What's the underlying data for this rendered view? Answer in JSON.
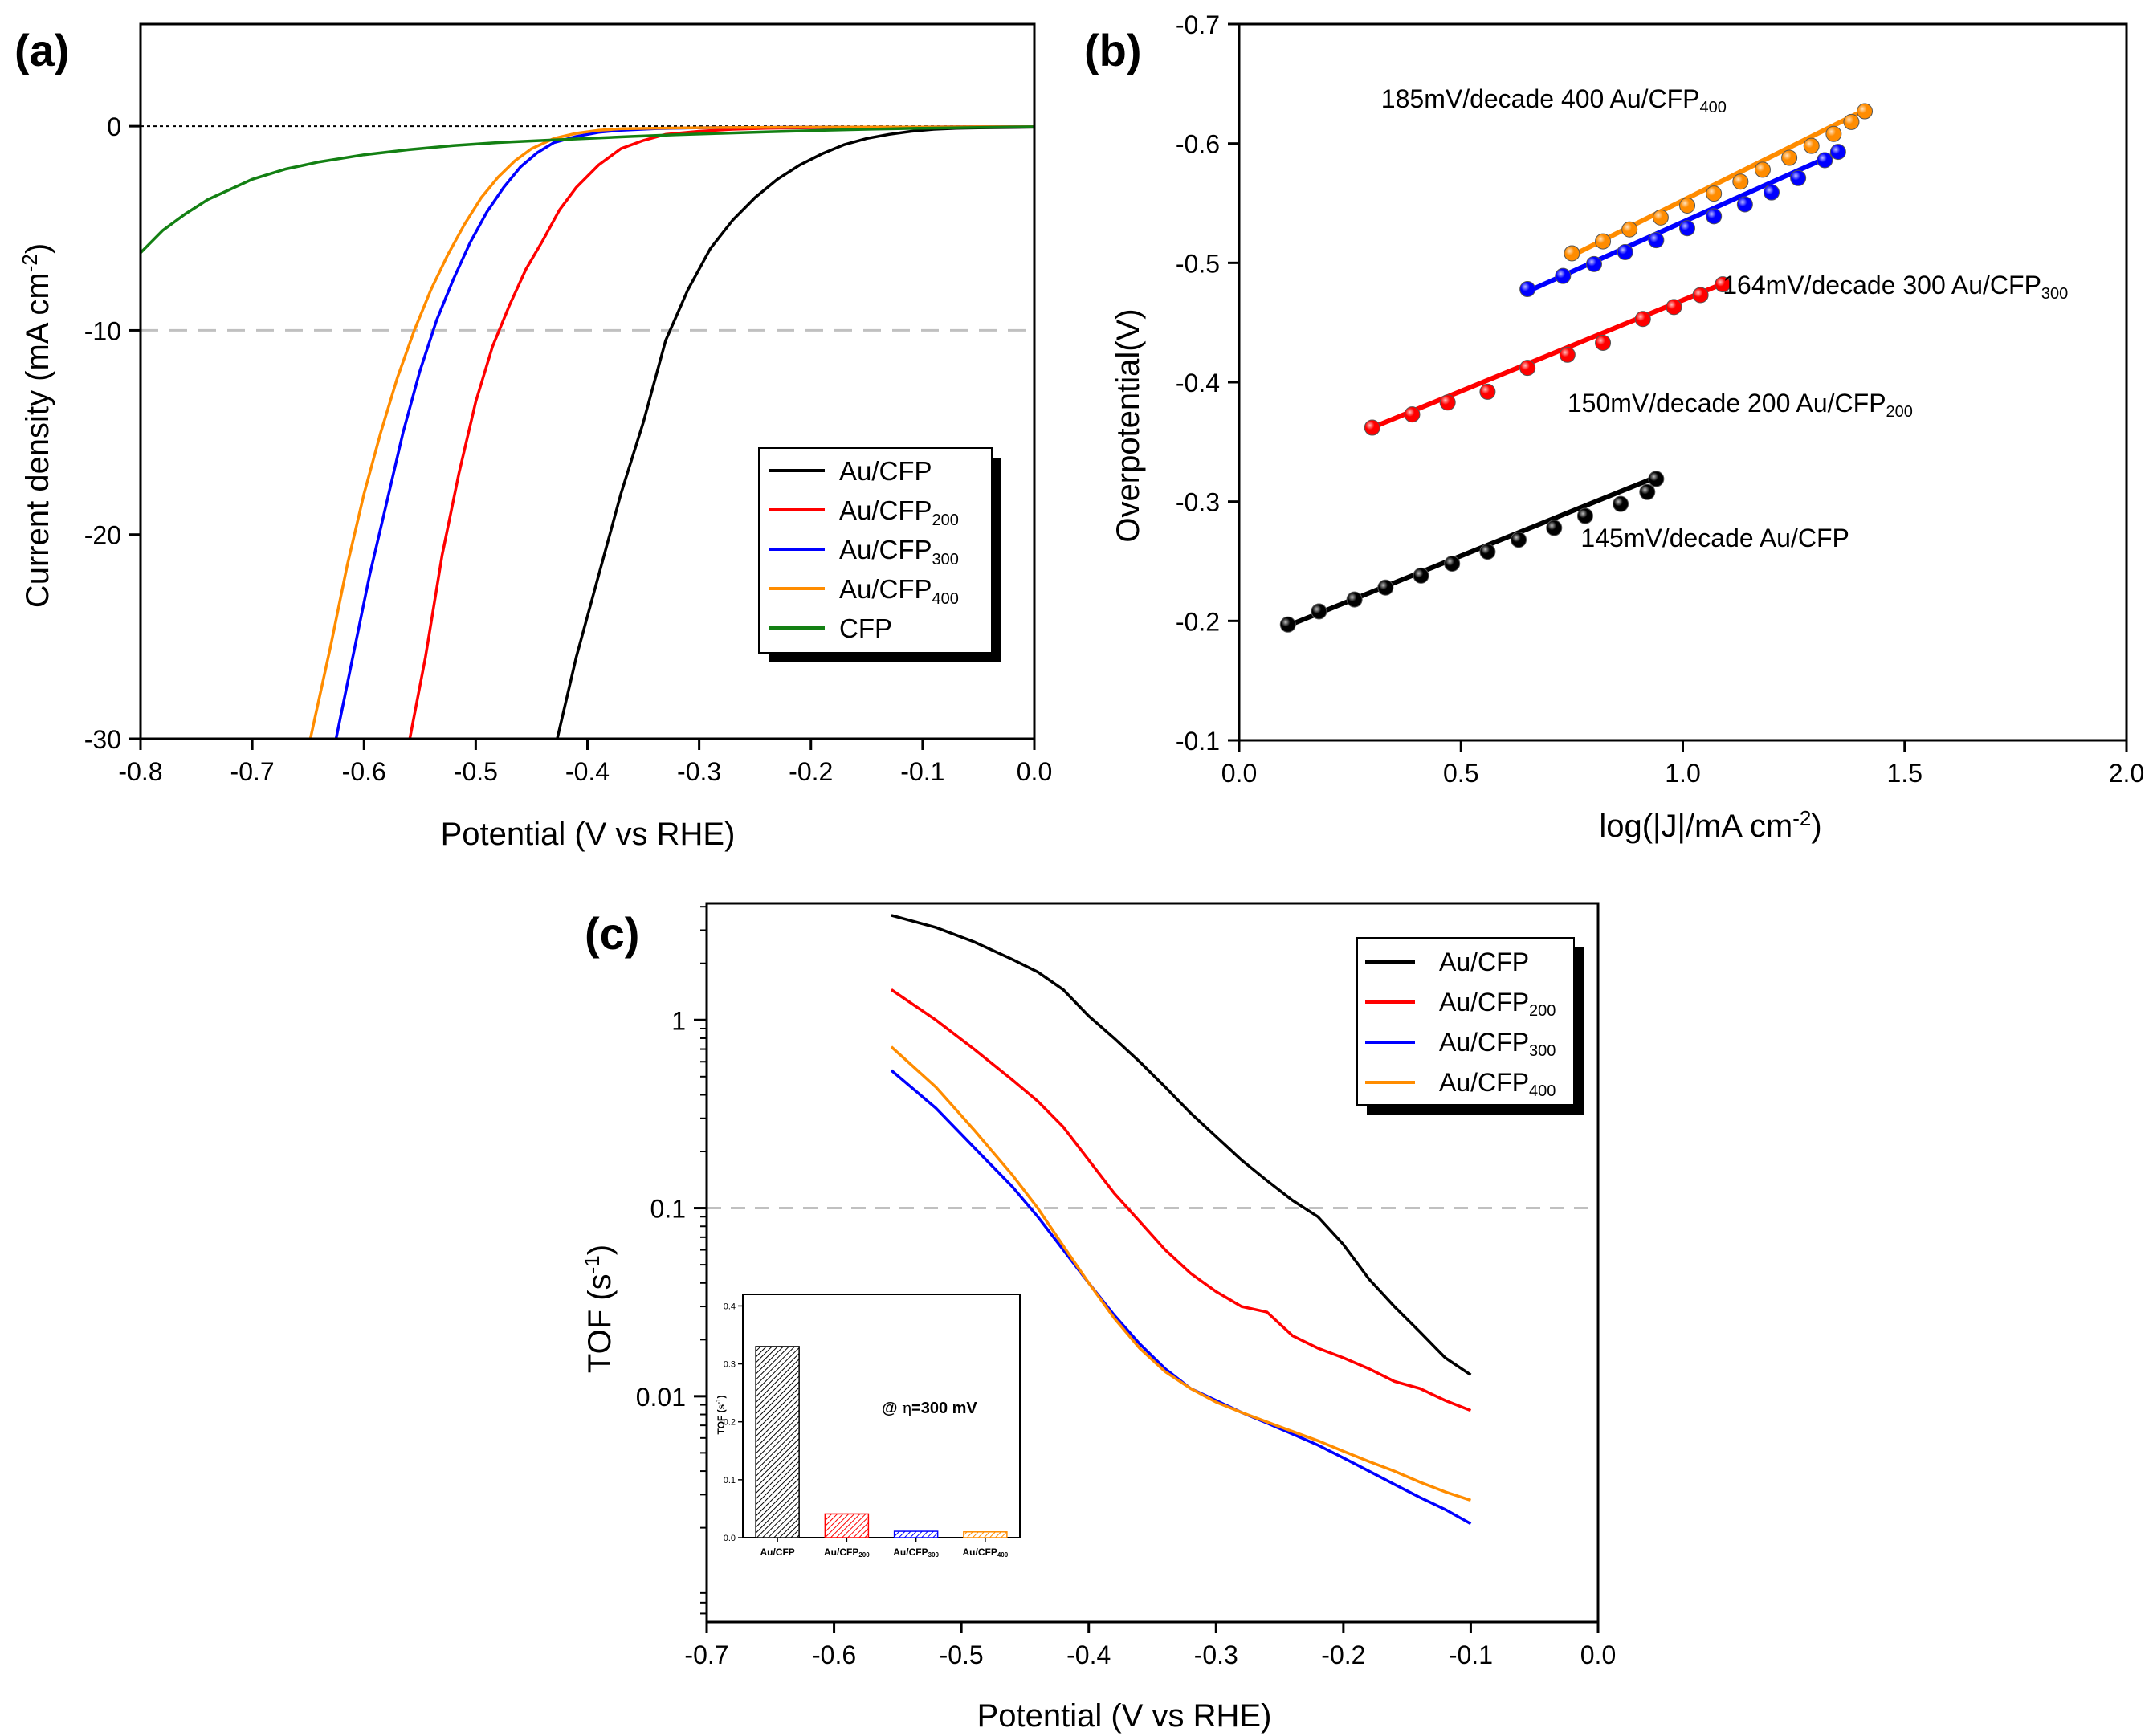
{
  "colors": {
    "Au/CFP": "#000000",
    "Au/CFP200": "#ff0000",
    "Au/CFP300": "#0000ff",
    "Au/CFP400": "#ff8c00",
    "CFP": "#138013",
    "ref_line": "#c0c0c0"
  },
  "chart_data": [
    {
      "id": "a",
      "type": "line",
      "panel_label": "(a)",
      "xlabel": "Potential (V vs RHE)",
      "ylabel": {
        "main": "Current density (mA cm",
        "sup": "-2",
        "end": ")"
      },
      "xlim": [
        -0.8,
        0.0
      ],
      "ylim": [
        -30,
        5
      ],
      "xticks": [
        -0.8,
        -0.7,
        -0.6,
        -0.5,
        -0.4,
        -0.3,
        -0.2,
        -0.1,
        0.0
      ],
      "xtick_labels": [
        "-0.8",
        "-0.7",
        "-0.6",
        "-0.5",
        "-0.4",
        "-0.3",
        "-0.2",
        "-0.1",
        "0.0"
      ],
      "yticks": [
        -30,
        -20,
        -10,
        0
      ],
      "ytick_labels": [
        "-30",
        "-20",
        "-10",
        "0"
      ],
      "reference_lines": [
        {
          "y": 0,
          "style": "dotted"
        },
        {
          "y": -10,
          "style": "dashed"
        }
      ],
      "legend": {
        "placement": "lower-right",
        "entries": [
          {
            "key": "Au/CFP",
            "base": "Au/CFP",
            "sub": ""
          },
          {
            "key": "Au/CFP200",
            "base": "Au/CFP",
            "sub": "200"
          },
          {
            "key": "Au/CFP300",
            "base": "Au/CFP",
            "sub": "300"
          },
          {
            "key": "Au/CFP400",
            "base": "Au/CFP",
            "sub": "400"
          },
          {
            "key": "CFP",
            "base": "CFP",
            "sub": ""
          }
        ]
      },
      "series": [
        {
          "name": "Au/CFP",
          "x": [
            -0.427,
            -0.41,
            -0.39,
            -0.37,
            -0.35,
            -0.33,
            -0.31,
            -0.29,
            -0.27,
            -0.25,
            -0.23,
            -0.21,
            -0.19,
            -0.17,
            -0.15,
            -0.13,
            -0.11,
            -0.09,
            -0.07,
            -0.05,
            -0.02,
            0.0
          ],
          "y": [
            -30,
            -26,
            -22,
            -18,
            -14.5,
            -10.5,
            -8,
            -6,
            -4.6,
            -3.5,
            -2.6,
            -1.9,
            -1.35,
            -0.9,
            -0.6,
            -0.4,
            -0.25,
            -0.15,
            -0.1,
            -0.08,
            -0.06,
            -0.05
          ]
        },
        {
          "name": "Au/CFP200",
          "x": [
            -0.559,
            -0.545,
            -0.53,
            -0.515,
            -0.5,
            -0.485,
            -0.47,
            -0.455,
            -0.44,
            -0.425,
            -0.41,
            -0.39,
            -0.37,
            -0.35,
            -0.33,
            -0.3,
            -0.27,
            -0.24,
            -0.21,
            -0.18,
            -0.15,
            -0.1,
            -0.05,
            0.0
          ],
          "y": [
            -30,
            -26,
            -21,
            -17,
            -13.5,
            -10.8,
            -8.8,
            -7,
            -5.6,
            -4.1,
            -3,
            -1.9,
            -1.1,
            -0.7,
            -0.4,
            -0.25,
            -0.15,
            -0.1,
            -0.08,
            -0.06,
            -0.05,
            -0.04,
            -0.03,
            -0.03
          ]
        },
        {
          "name": "Au/CFP300",
          "x": [
            -0.625,
            -0.61,
            -0.595,
            -0.58,
            -0.565,
            -0.55,
            -0.535,
            -0.52,
            -0.505,
            -0.49,
            -0.475,
            -0.46,
            -0.445,
            -0.43,
            -0.41,
            -0.39,
            -0.37,
            -0.34,
            -0.31,
            -0.28,
            -0.25,
            -0.2,
            -0.15,
            -0.1,
            -0.05,
            0.0
          ],
          "y": [
            -30,
            -26,
            -22,
            -18.5,
            -15,
            -12,
            -9.5,
            -7.5,
            -5.7,
            -4.2,
            -3,
            -2,
            -1.3,
            -0.8,
            -0.5,
            -0.3,
            -0.2,
            -0.12,
            -0.09,
            -0.07,
            -0.06,
            -0.05,
            -0.05,
            -0.04,
            -0.03,
            -0.03
          ]
        },
        {
          "name": "Au/CFP400",
          "x": [
            -0.648,
            -0.63,
            -0.615,
            -0.6,
            -0.585,
            -0.57,
            -0.555,
            -0.54,
            -0.525,
            -0.51,
            -0.495,
            -0.48,
            -0.465,
            -0.45,
            -0.43,
            -0.41,
            -0.39,
            -0.37,
            -0.34,
            -0.31,
            -0.28,
            -0.25,
            -0.2,
            -0.15,
            -0.1,
            -0.05,
            0.0
          ],
          "y": [
            -30,
            -25.5,
            -21.5,
            -18,
            -15,
            -12.3,
            -10,
            -8,
            -6.3,
            -4.8,
            -3.5,
            -2.5,
            -1.7,
            -1.1,
            -0.6,
            -0.35,
            -0.2,
            -0.13,
            -0.1,
            -0.08,
            -0.07,
            -0.06,
            -0.05,
            -0.04,
            -0.04,
            -0.03,
            -0.03
          ]
        },
        {
          "name": "CFP",
          "x": [
            -0.8,
            -0.78,
            -0.76,
            -0.74,
            -0.72,
            -0.7,
            -0.67,
            -0.64,
            -0.6,
            -0.56,
            -0.52,
            -0.48,
            -0.44,
            -0.4,
            -0.36,
            -0.32,
            -0.28,
            -0.24,
            -0.2,
            -0.15,
            -0.1,
            -0.05,
            0.0
          ],
          "y": [
            -6.2,
            -5.1,
            -4.3,
            -3.6,
            -3.1,
            -2.6,
            -2.1,
            -1.75,
            -1.4,
            -1.15,
            -0.95,
            -0.8,
            -0.7,
            -0.6,
            -0.5,
            -0.42,
            -0.35,
            -0.28,
            -0.22,
            -0.15,
            -0.1,
            -0.06,
            -0.03
          ]
        }
      ]
    },
    {
      "id": "b",
      "type": "scatter",
      "panel_label": "(b)",
      "xlabel": {
        "main": "log(|J|/mA cm",
        "sup": "-2",
        "end": ")"
      },
      "ylabel": "Overpotential(V)",
      "xlim": [
        0.0,
        2.0
      ],
      "ylim": [
        -0.1,
        -0.7
      ],
      "xticks": [
        0.0,
        0.5,
        1.0,
        1.5,
        2.0
      ],
      "xtick_labels": [
        "0.0",
        "0.5",
        "1.0",
        "1.5",
        "2.0"
      ],
      "yticks": [
        -0.1,
        -0.2,
        -0.3,
        -0.4,
        -0.5,
        -0.6,
        -0.7
      ],
      "ytick_labels": [
        "-0.1",
        "-0.2",
        "-0.3",
        "-0.4",
        "-0.5",
        "-0.6",
        "-0.7"
      ],
      "annotations": [
        {
          "series": "Au/CFP",
          "text": "145mV/decade Au/CFP",
          "sub": "",
          "x": 0.77,
          "y": -0.262
        },
        {
          "series": "Au/CFP200",
          "text": "150mV/decade 200 Au/CFP",
          "sub": "200",
          "x": 0.74,
          "y": -0.375
        },
        {
          "series": "Au/CFP300",
          "text": "164mV/decade 300 Au/CFP",
          "sub": "300",
          "x": 1.09,
          "y": -0.474
        },
        {
          "series": "Au/CFP400",
          "text": "185mV/decade 400 Au/CFP",
          "sub": "400",
          "x": 0.32,
          "y": -0.63
        }
      ],
      "series": [
        {
          "name": "Au/CFP",
          "fit": {
            "x": [
              0.11,
              0.95
            ],
            "y": [
              -0.196,
              -0.322
            ]
          },
          "x": [
            0.11,
            0.18,
            0.26,
            0.33,
            0.41,
            0.48,
            0.56,
            0.63,
            0.71,
            0.78,
            0.86,
            0.92,
            0.94
          ],
          "y": [
            -0.197,
            -0.208,
            -0.218,
            -0.228,
            -0.238,
            -0.248,
            -0.258,
            -0.268,
            -0.278,
            -0.288,
            -0.298,
            -0.308,
            -0.319
          ]
        },
        {
          "name": "Au/CFP200",
          "fit": {
            "x": [
              0.3,
              1.1
            ],
            "y": [
              -0.362,
              -0.484
            ]
          },
          "x": [
            0.3,
            0.39,
            0.47,
            0.56,
            0.65,
            0.74,
            0.82,
            0.91,
            0.98,
            1.04,
            1.09
          ],
          "y": [
            -0.362,
            -0.373,
            -0.383,
            -0.392,
            -0.412,
            -0.423,
            -0.433,
            -0.453,
            -0.463,
            -0.473,
            -0.482
          ]
        },
        {
          "name": "Au/CFP300",
          "fit": {
            "x": [
              0.65,
              1.36
            ],
            "y": [
              -0.476,
              -0.594
            ]
          },
          "x": [
            0.65,
            0.73,
            0.8,
            0.87,
            0.94,
            1.01,
            1.07,
            1.14,
            1.2,
            1.26,
            1.32,
            1.35
          ],
          "y": [
            -0.478,
            -0.489,
            -0.499,
            -0.509,
            -0.519,
            -0.529,
            -0.539,
            -0.549,
            -0.559,
            -0.571,
            -0.586,
            -0.593
          ]
        },
        {
          "name": "Au/CFP400",
          "fit": {
            "x": [
              0.75,
              1.41
            ],
            "y": [
              -0.506,
              -0.628
            ]
          },
          "x": [
            0.75,
            0.82,
            0.88,
            0.95,
            1.01,
            1.07,
            1.13,
            1.18,
            1.24,
            1.29,
            1.34,
            1.38,
            1.41
          ],
          "y": [
            -0.508,
            -0.518,
            -0.528,
            -0.538,
            -0.548,
            -0.558,
            -0.568,
            -0.578,
            -0.588,
            -0.598,
            -0.608,
            -0.618,
            -0.627
          ]
        }
      ]
    },
    {
      "id": "c",
      "type": "line",
      "panel_label": "(c)",
      "xlabel": "Potential (V vs RHE)",
      "ylabel": {
        "main": "TOF (s",
        "sup": "-1",
        "end": ")"
      },
      "xlim": [
        -0.7,
        0.0
      ],
      "ylim_log10": [
        -3.2,
        0.62
      ],
      "yscale": "log",
      "xticks": [
        -0.7,
        -0.6,
        -0.5,
        -0.4,
        -0.3,
        -0.2,
        -0.1,
        0.0
      ],
      "xtick_labels": [
        "-0.7",
        "-0.6",
        "-0.5",
        "-0.4",
        "-0.3",
        "-0.2",
        "-0.1",
        "0.0"
      ],
      "yticks_log10": [
        -2,
        -1,
        0
      ],
      "ytick_labels": [
        "0.01",
        "0.1",
        "1"
      ],
      "reference_lines": [
        {
          "y": 0.1,
          "style": "dashed"
        }
      ],
      "legend": {
        "placement": "top-right",
        "entries": [
          {
            "key": "Au/CFP",
            "base": "Au/CFP",
            "sub": ""
          },
          {
            "key": "Au/CFP200",
            "base": "Au/CFP",
            "sub": "200"
          },
          {
            "key": "Au/CFP300",
            "base": "Au/CFP",
            "sub": "300"
          },
          {
            "key": "Au/CFP400",
            "base": "Au/CFP",
            "sub": "400"
          }
        ]
      },
      "series": [
        {
          "name": "Au/CFP",
          "x": [
            -0.555,
            -0.52,
            -0.49,
            -0.46,
            -0.44,
            -0.42,
            -0.4,
            -0.38,
            -0.36,
            -0.34,
            -0.32,
            -0.3,
            -0.28,
            -0.26,
            -0.24,
            -0.22,
            -0.2,
            -0.18,
            -0.16,
            -0.14,
            -0.12,
            -0.1
          ],
          "y": [
            3.6,
            3.1,
            2.6,
            2.1,
            1.8,
            1.45,
            1.05,
            0.8,
            0.6,
            0.44,
            0.32,
            0.24,
            0.18,
            0.14,
            0.11,
            0.09,
            0.064,
            0.042,
            0.03,
            0.022,
            0.016,
            0.013
          ]
        },
        {
          "name": "Au/CFP200",
          "x": [
            -0.555,
            -0.52,
            -0.49,
            -0.46,
            -0.44,
            -0.42,
            -0.4,
            -0.38,
            -0.36,
            -0.34,
            -0.32,
            -0.3,
            -0.28,
            -0.26,
            -0.24,
            -0.22,
            -0.2,
            -0.18,
            -0.16,
            -0.14,
            -0.12,
            -0.1
          ],
          "y": [
            1.45,
            1.0,
            0.7,
            0.48,
            0.37,
            0.27,
            0.18,
            0.12,
            0.085,
            0.06,
            0.045,
            0.036,
            0.03,
            0.028,
            0.021,
            0.018,
            0.016,
            0.014,
            0.012,
            0.011,
            0.0095,
            0.0084
          ]
        },
        {
          "name": "Au/CFP300",
          "x": [
            -0.555,
            -0.52,
            -0.49,
            -0.46,
            -0.44,
            -0.42,
            -0.4,
            -0.38,
            -0.36,
            -0.34,
            -0.32,
            -0.3,
            -0.28,
            -0.26,
            -0.24,
            -0.22,
            -0.2,
            -0.18,
            -0.16,
            -0.14,
            -0.12,
            -0.1
          ],
          "y": [
            0.54,
            0.34,
            0.21,
            0.13,
            0.09,
            0.06,
            0.04,
            0.027,
            0.019,
            0.014,
            0.011,
            0.0095,
            0.0082,
            0.0072,
            0.0063,
            0.0055,
            0.0047,
            0.004,
            0.0034,
            0.0029,
            0.0025,
            0.0021
          ]
        },
        {
          "name": "Au/CFP400",
          "x": [
            -0.555,
            -0.52,
            -0.49,
            -0.46,
            -0.44,
            -0.42,
            -0.4,
            -0.38,
            -0.36,
            -0.34,
            -0.32,
            -0.3,
            -0.28,
            -0.26,
            -0.24,
            -0.22,
            -0.2,
            -0.18,
            -0.16,
            -0.14,
            -0.12,
            -0.1
          ],
          "y": [
            0.72,
            0.44,
            0.26,
            0.15,
            0.1,
            0.063,
            0.04,
            0.026,
            0.018,
            0.0135,
            0.011,
            0.0093,
            0.0082,
            0.0073,
            0.0065,
            0.0058,
            0.0051,
            0.0045,
            0.004,
            0.0035,
            0.0031,
            0.0028
          ]
        }
      ],
      "inset": {
        "type": "bar",
        "ylabel": {
          "main": "TOF (s",
          "sup": "-1",
          "end": ")"
        },
        "ylim": [
          0.0,
          0.42
        ],
        "yticks": [
          0.0,
          0.1,
          0.2,
          0.3,
          0.4
        ],
        "ytick_labels": [
          "0.0",
          "0.1",
          "0.2",
          "0.3",
          "0.4"
        ],
        "annotation": {
          "prefix": "@ ",
          "symbol": "η",
          "rest": "=300 mV"
        },
        "categories": [
          {
            "key": "Au/CFP",
            "base": "Au/CFP",
            "sub": ""
          },
          {
            "key": "Au/CFP200",
            "base": "Au/CFP",
            "sub": "200"
          },
          {
            "key": "Au/CFP300",
            "base": "Au/CFP",
            "sub": "300"
          },
          {
            "key": "Au/CFP400",
            "base": "Au/CFP",
            "sub": "400"
          }
        ],
        "values": [
          0.33,
          0.041,
          0.011,
          0.01
        ]
      }
    }
  ]
}
